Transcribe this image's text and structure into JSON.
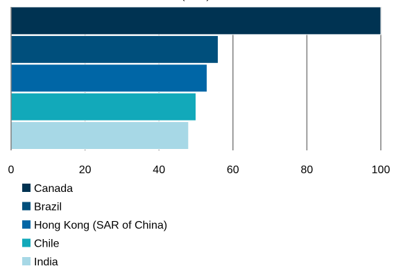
{
  "chart_data": {
    "type": "bar",
    "orientation": "horizontal",
    "title": "(... ...)",
    "categories": [
      "Canada",
      "Brazil",
      "Hong Kong (SAR of China)",
      "Chile",
      "India"
    ],
    "values": [
      100,
      56,
      53,
      50,
      48
    ],
    "xlim": [
      0,
      100
    ],
    "x_ticks": [
      0,
      20,
      40,
      60,
      80,
      100
    ],
    "grid": "vertical",
    "legend_position": "bottom-left",
    "colors": [
      "#003352",
      "#004f7c",
      "#0066a6",
      "#12a9ba",
      "#a7d8e6"
    ],
    "gridline_color": "#7f7f7f",
    "axis_color": "#7f7f7f"
  }
}
